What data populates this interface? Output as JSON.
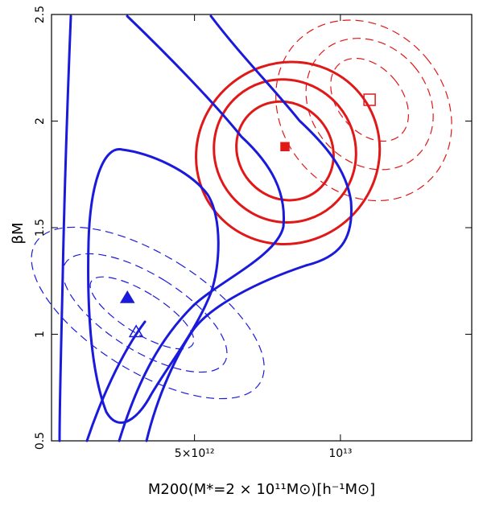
{
  "chart_data": {
    "type": "contour",
    "x_axis": {
      "label": "M200(M*=2 × 10¹¹M⊙)[h⁻¹M⊙]",
      "ticks": [
        {
          "value": 5000000000000.0,
          "label": "5×10¹²"
        },
        {
          "value": 10000000000000.0,
          "label": "10¹³"
        }
      ],
      "range": [
        100000000000.0,
        14500000000000.0
      ]
    },
    "y_axis": {
      "label": "βM",
      "ticks": [
        {
          "value": 0.5,
          "label": "0.5"
        },
        {
          "value": 1,
          "label": "1"
        },
        {
          "value": 1.5,
          "label": "1.5"
        },
        {
          "value": 2,
          "label": "2"
        },
        {
          "value": 2.5,
          "label": "2.5"
        }
      ],
      "range": [
        0.5,
        2.5
      ]
    },
    "colors": {
      "blue": "#1a1adc",
      "red": "#e01818"
    },
    "markers": [
      {
        "name": "blue-filled-triangle",
        "shape": "triangle",
        "filled": true,
        "color": "blue",
        "x": 2700000000000.0,
        "y": 1.17
      },
      {
        "name": "blue-open-triangle",
        "shape": "triangle",
        "filled": false,
        "color": "blue",
        "x": 3000000000000.0,
        "y": 1.01
      },
      {
        "name": "red-filled-square",
        "shape": "square",
        "filled": true,
        "color": "red",
        "x": 8100000000000.0,
        "y": 1.88
      },
      {
        "name": "red-open-square",
        "shape": "square",
        "filled": false,
        "color": "red",
        "x": 11000000000000.0,
        "y": 2.1
      }
    ],
    "contours": {
      "red_solid": [
        {
          "cx": 8100000000000.0,
          "cy": 1.86,
          "rx": 1600000000000.0,
          "ry": 0.24,
          "angle": -40
        },
        {
          "cx": 8100000000000.0,
          "cy": 1.86,
          "rx": 2400000000000.0,
          "ry": 0.34,
          "angle": -40
        },
        {
          "cx": 8200000000000.0,
          "cy": 1.85,
          "rx": 3200000000000.0,
          "ry": 0.42,
          "angle": -40
        }
      ],
      "red_dashed": [
        {
          "cx": 11000000000000.0,
          "cy": 2.1,
          "rx": 1100000000000.0,
          "ry": 0.22,
          "angle": -40
        },
        {
          "cx": 11000000000000.0,
          "cy": 2.08,
          "rx": 2000000000000.0,
          "ry": 0.33,
          "angle": -40
        },
        {
          "cx": 10800000000000.0,
          "cy": 2.05,
          "rx": 2800000000000.0,
          "ry": 0.45,
          "angle": -40
        }
      ],
      "blue_dashed": [
        {
          "cx": 3200000000000.0,
          "cy": 1.1,
          "rx": 700000000000.0,
          "ry": 0.28,
          "angle": -58
        },
        {
          "cx": 3300000000000.0,
          "cy": 1.1,
          "rx": 1300000000000.0,
          "ry": 0.44,
          "angle": -58
        },
        {
          "cx": 3400000000000.0,
          "cy": 1.1,
          "rx": 2000000000000.0,
          "ry": 0.62,
          "angle": -58
        }
      ]
    }
  }
}
